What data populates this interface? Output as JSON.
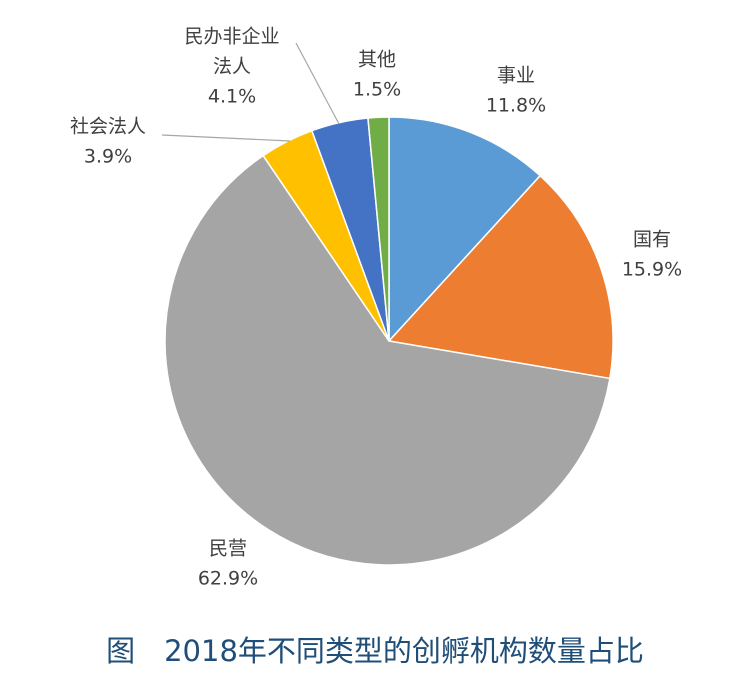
{
  "chart_data": {
    "type": "pie",
    "title": "图　2018年不同类型的创孵机构数量占比",
    "unit": "%",
    "slices": [
      {
        "name": "事业",
        "value": 11.8,
        "label": "11.8%",
        "color": "#5b9bd5"
      },
      {
        "name": "国有",
        "value": 15.9,
        "label": "15.9%",
        "color": "#ed7d31"
      },
      {
        "name": "民营",
        "value": 62.9,
        "label": "62.9%",
        "color": "#a5a5a5"
      },
      {
        "name": "社会法人",
        "value": 3.9,
        "label": "3.9%",
        "color": "#ffc000"
      },
      {
        "name": "民办非企业法人",
        "name_lines": [
          "民办非企业",
          "法人"
        ],
        "value": 4.1,
        "label": "4.1%",
        "color": "#4472c4"
      },
      {
        "name": "其他",
        "value": 1.5,
        "label": "1.5%",
        "color": "#70ad47"
      }
    ],
    "start_angle_deg": 0,
    "direction": "clockwise",
    "legend": "none",
    "data_labels": "outside"
  }
}
